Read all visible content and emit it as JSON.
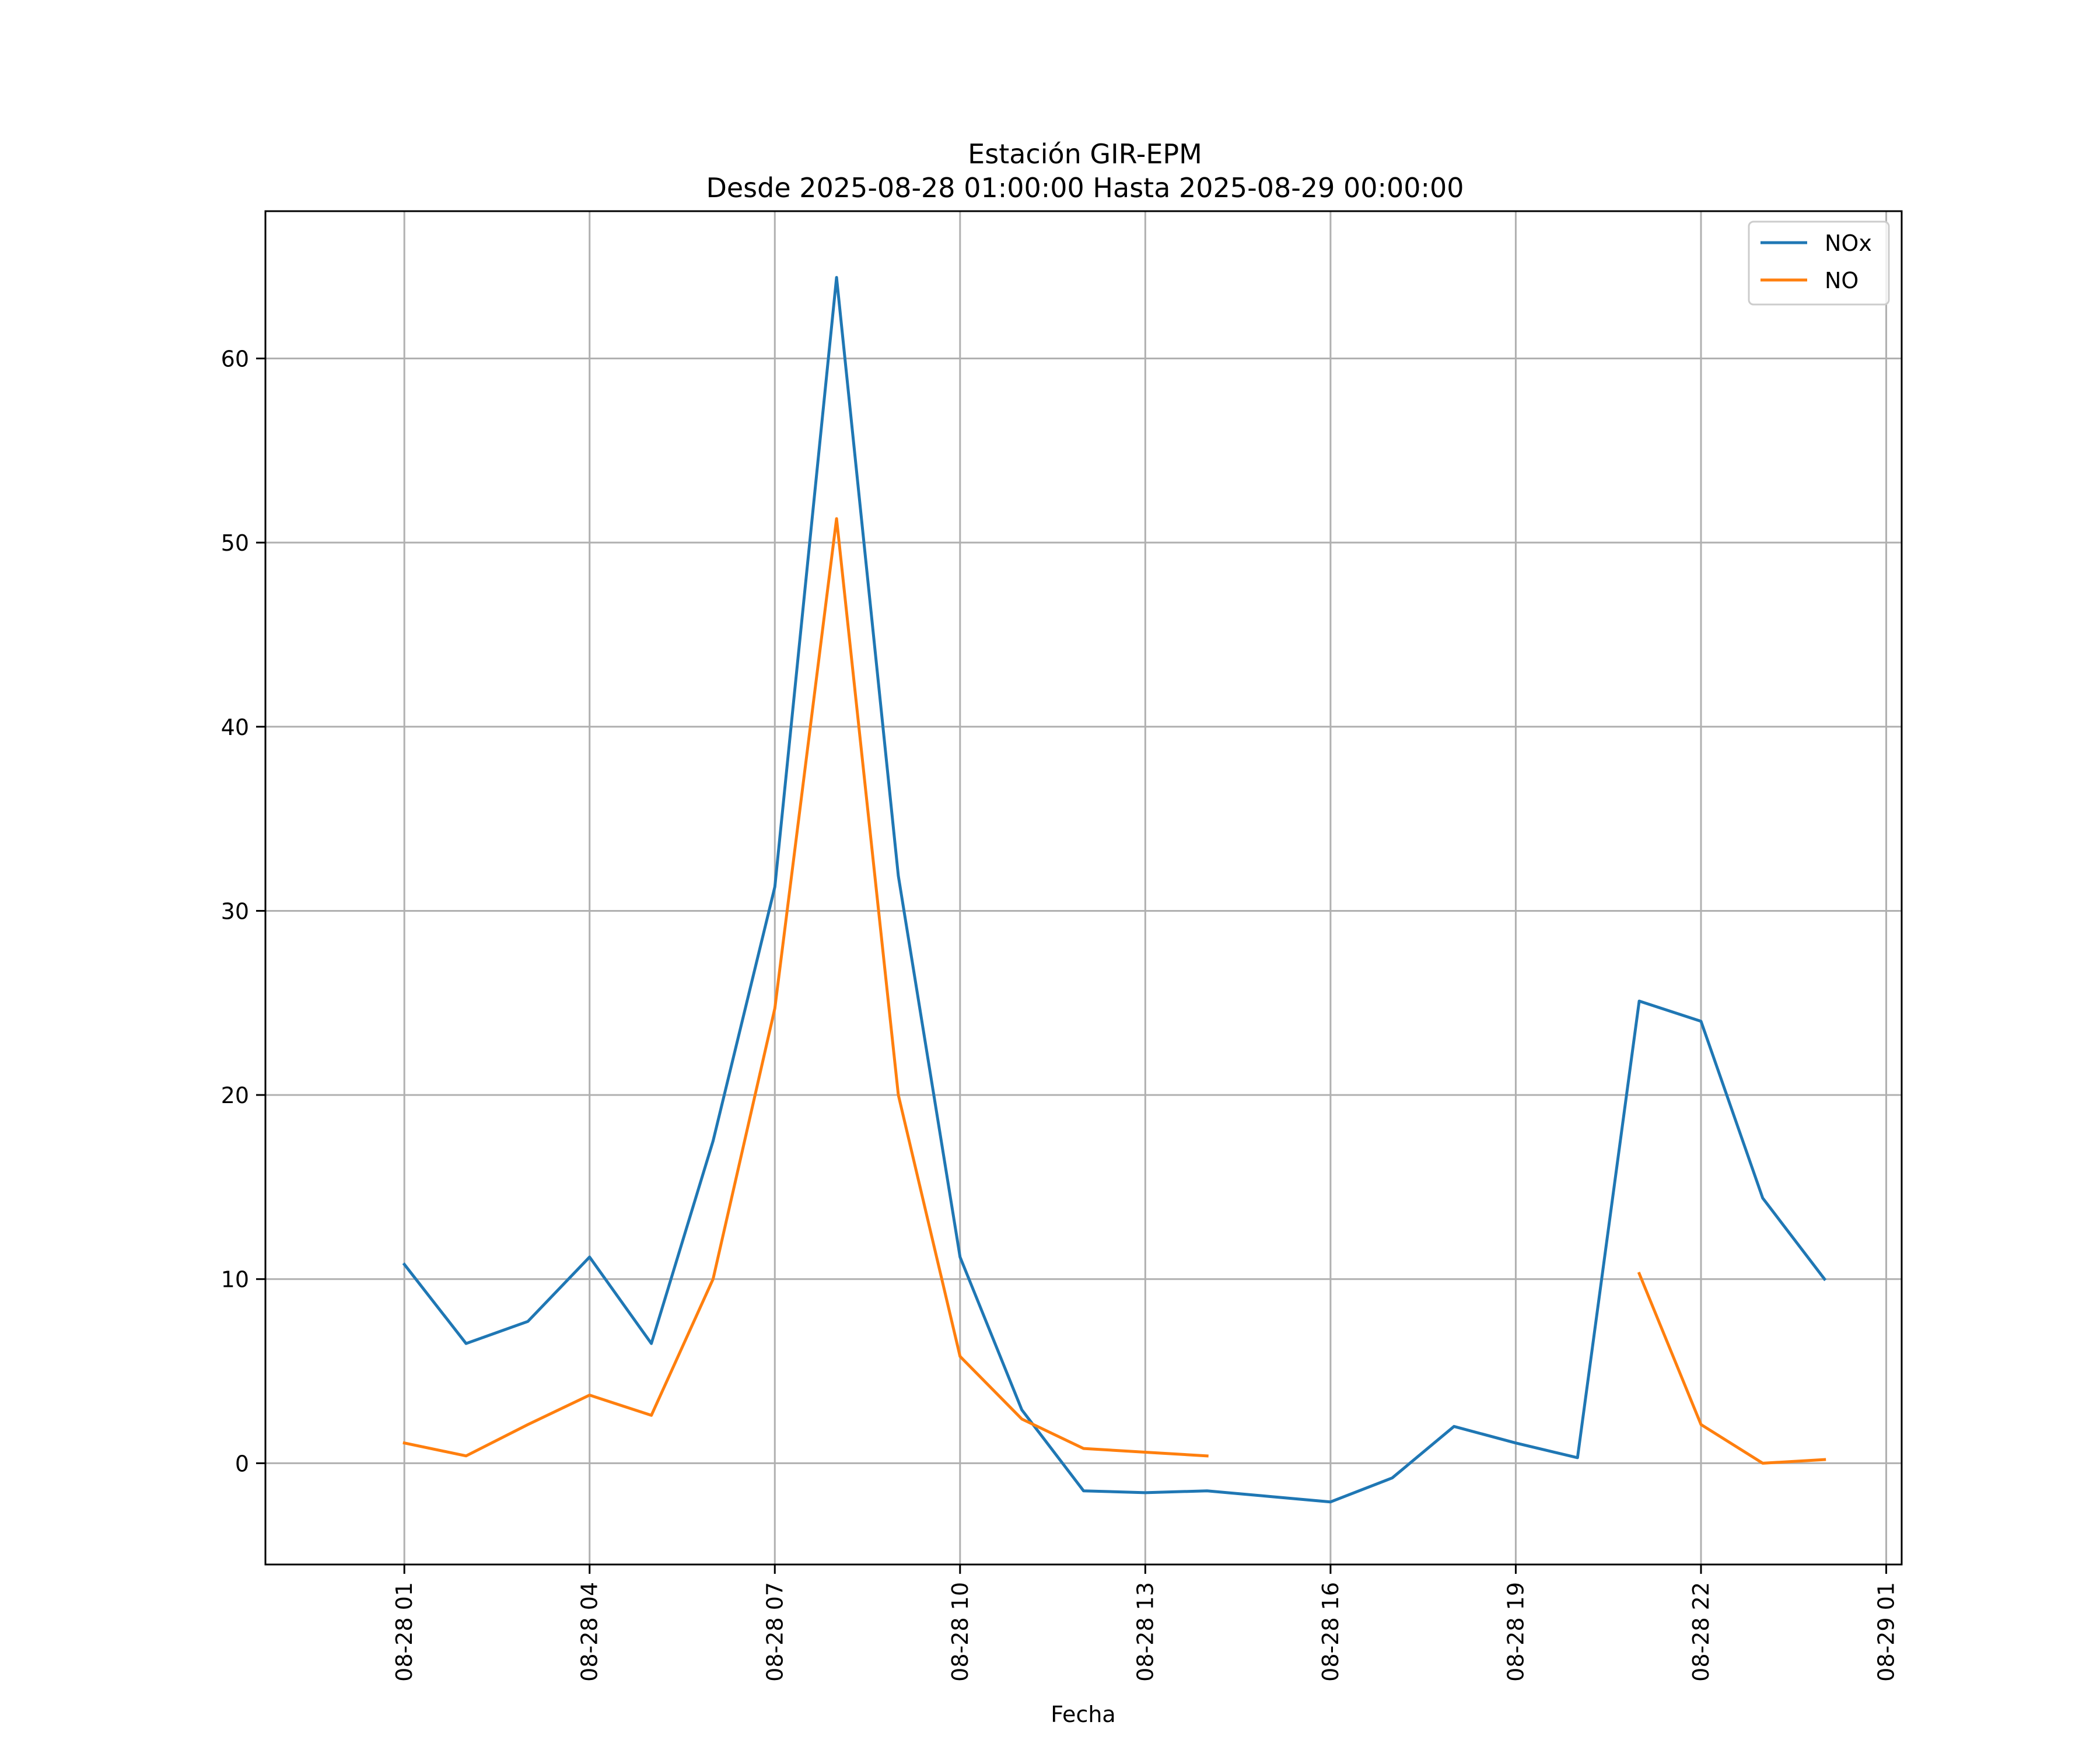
{
  "chart_data": {
    "type": "line",
    "title": "Estación GIR-EPM",
    "subtitle": "Desde 2025-08-28 01:00:00 Hasta 2025-08-29 00:00:00",
    "xlabel": "Fecha",
    "ylabel": "",
    "x": [
      "2025-08-28 01:00",
      "2025-08-28 02:00",
      "2025-08-28 03:00",
      "2025-08-28 04:00",
      "2025-08-28 05:00",
      "2025-08-28 06:00",
      "2025-08-28 07:00",
      "2025-08-28 08:00",
      "2025-08-28 09:00",
      "2025-08-28 10:00",
      "2025-08-28 11:00",
      "2025-08-28 12:00",
      "2025-08-28 13:00",
      "2025-08-28 14:00",
      "2025-08-28 15:00",
      "2025-08-28 16:00",
      "2025-08-28 17:00",
      "2025-08-28 18:00",
      "2025-08-28 19:00",
      "2025-08-28 20:00",
      "2025-08-28 21:00",
      "2025-08-28 22:00",
      "2025-08-28 23:00",
      "2025-08-29 00:00"
    ],
    "series": [
      {
        "name": "NOx",
        "color": "#1f77b4",
        "values": [
          10.8,
          6.5,
          7.7,
          11.2,
          6.5,
          17.5,
          31.3,
          64.4,
          31.9,
          11.2,
          2.9,
          -1.5,
          -1.6,
          -1.5,
          -1.8,
          -2.1,
          -0.8,
          2.0,
          1.1,
          0.3,
          25.1,
          24.0,
          14.4,
          10.0
        ]
      },
      {
        "name": "NO",
        "color": "#ff7f0e",
        "values": [
          1.1,
          0.4,
          2.1,
          3.7,
          2.6,
          10.0,
          24.7,
          51.3,
          20.0,
          5.8,
          2.4,
          0.8,
          0.6,
          0.4,
          null,
          null,
          null,
          null,
          null,
          null,
          10.3,
          2.1,
          0.0,
          0.2
        ]
      }
    ],
    "xticks": [
      "08-28 01",
      "08-28 04",
      "08-28 07",
      "08-28 10",
      "08-28 13",
      "08-28 16",
      "08-28 19",
      "08-28 22",
      "08-29 01"
    ],
    "yticks": [
      0,
      10,
      20,
      30,
      40,
      50,
      60
    ],
    "xlim": [
      "2025-08-27 22:45",
      "2025-08-29 01:15"
    ],
    "ylim": [
      -5.5,
      68.0
    ],
    "grid": true,
    "legend_position": "top-right"
  }
}
